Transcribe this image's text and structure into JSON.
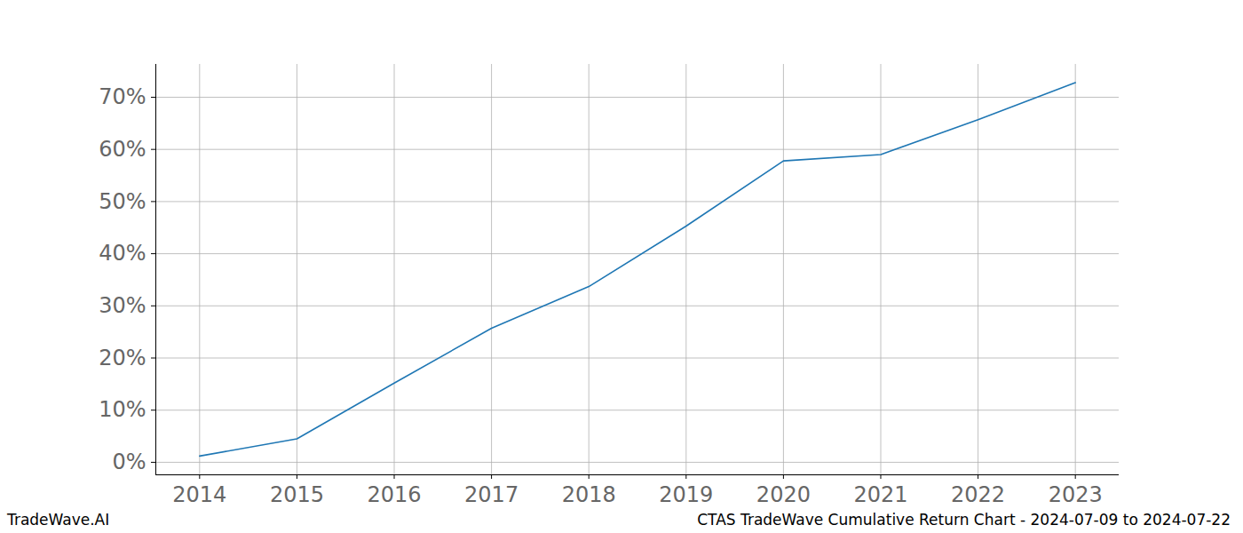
{
  "chart_data": {
    "type": "line",
    "title": "CTAS TradeWave Cumulative Return Chart - 2024-07-09 to 2024-07-22",
    "caption": "TradeWave.AI",
    "x": [
      2014,
      2015,
      2016,
      2017,
      2018,
      2019,
      2020,
      2021,
      2022,
      2023
    ],
    "series": [
      {
        "name": "CTAS",
        "color": "#1f77b4",
        "values": [
          1.2,
          4.5,
          15.2,
          25.7,
          33.7,
          45.3,
          57.8,
          59.0,
          65.7,
          72.8
        ]
      }
    ],
    "xlim": [
      2013.55,
      2023.45
    ],
    "xticks": [
      2014,
      2015,
      2016,
      2017,
      2018,
      2019,
      2020,
      2021,
      2022,
      2023
    ],
    "ylim": [
      -2.4,
      76.3
    ],
    "yticks": [
      {
        "value": 0,
        "label": "0%"
      },
      {
        "value": 10,
        "label": "10%"
      },
      {
        "value": 20,
        "label": "20%"
      },
      {
        "value": 30,
        "label": "30%"
      },
      {
        "value": 40,
        "label": "40%"
      },
      {
        "value": 50,
        "label": "50%"
      },
      {
        "value": 60,
        "label": "60%"
      },
      {
        "value": 70,
        "label": "70%"
      }
    ],
    "grid": true
  }
}
